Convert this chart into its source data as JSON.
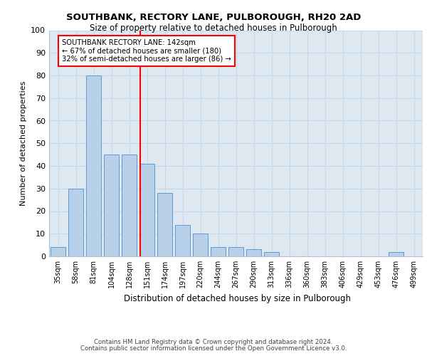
{
  "title1": "SOUTHBANK, RECTORY LANE, PULBOROUGH, RH20 2AD",
  "title2": "Size of property relative to detached houses in Pulborough",
  "xlabel": "Distribution of detached houses by size in Pulborough",
  "ylabel": "Number of detached properties",
  "categories": [
    "35sqm",
    "58sqm",
    "81sqm",
    "104sqm",
    "128sqm",
    "151sqm",
    "174sqm",
    "197sqm",
    "220sqm",
    "244sqm",
    "267sqm",
    "290sqm",
    "313sqm",
    "336sqm",
    "360sqm",
    "383sqm",
    "406sqm",
    "429sqm",
    "453sqm",
    "476sqm",
    "499sqm"
  ],
  "values": [
    4,
    30,
    80,
    45,
    45,
    41,
    28,
    14,
    10,
    4,
    4,
    3,
    2,
    0,
    0,
    0,
    0,
    0,
    0,
    2,
    0
  ],
  "bar_color": "#b8d0e8",
  "bar_edge_color": "#5b9bd5",
  "grid_color": "#c8d8ea",
  "background_color": "#dde8f0",
  "vline_color": "red",
  "annotation_text": "SOUTHBANK RECTORY LANE: 142sqm\n← 67% of detached houses are smaller (180)\n32% of semi-detached houses are larger (86) →",
  "annotation_box_color": "white",
  "annotation_box_edge": "red",
  "ylim": [
    0,
    100
  ],
  "yticks": [
    0,
    10,
    20,
    30,
    40,
    50,
    60,
    70,
    80,
    90,
    100
  ],
  "footer1": "Contains HM Land Registry data © Crown copyright and database right 2024.",
  "footer2": "Contains public sector information licensed under the Open Government Licence v3.0."
}
